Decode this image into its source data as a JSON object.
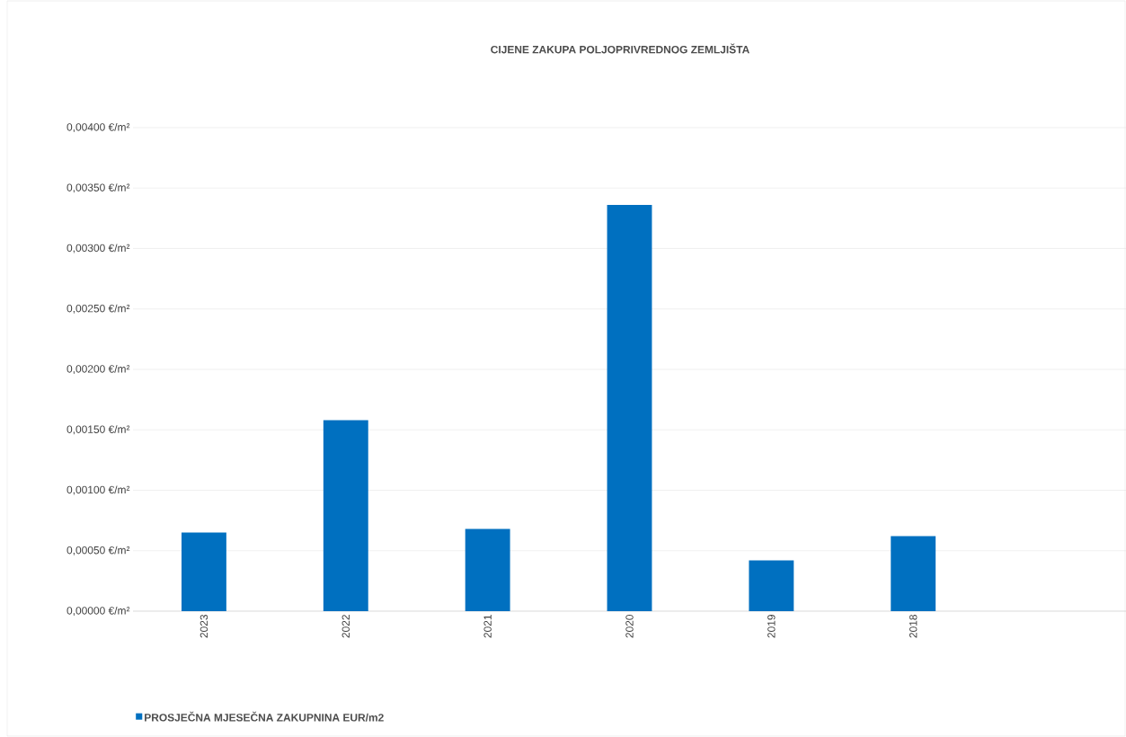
{
  "chart_data": {
    "type": "bar",
    "title": "CIJENE ZAKUPA POLJOPRIVREDNOG ZEMLJIŠTA",
    "categories": [
      "2023",
      "2022",
      "2021",
      "2020",
      "2019",
      "2018",
      null
    ],
    "series": [
      {
        "name": "PROSJEČNA MJESEČNA ZAKUPNINA EUR/m2",
        "color": "#0070c0",
        "values": [
          0.00065,
          0.00158,
          0.00068,
          0.00336,
          0.00042,
          0.00062,
          null
        ]
      }
    ],
    "ylim": [
      0,
      0.004
    ],
    "yticks": [
      {
        "value": 0,
        "label": "0,00000 €/m²"
      },
      {
        "value": 0.0005,
        "label": "0,00050 €/m²"
      },
      {
        "value": 0.001,
        "label": "0,00100 €/m²"
      },
      {
        "value": 0.0015,
        "label": "0,00150 €/m²"
      },
      {
        "value": 0.002,
        "label": "0,00200 €/m²"
      },
      {
        "value": 0.0025,
        "label": "0,00250 €/m²"
      },
      {
        "value": 0.003,
        "label": "0,00300 €/m²"
      },
      {
        "value": 0.0035,
        "label": "0,00350 €/m²"
      },
      {
        "value": 0.004,
        "label": "0,00400 €/m²"
      }
    ],
    "grid": "y",
    "legend": "bottom left"
  }
}
